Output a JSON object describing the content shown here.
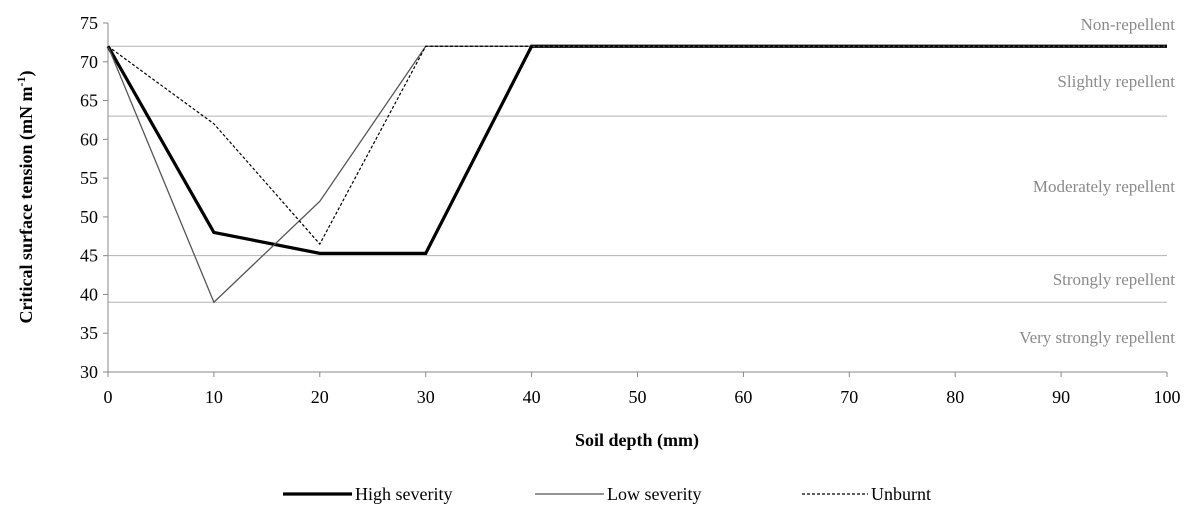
{
  "chart_data": {
    "type": "line",
    "xlabel": "Soil depth (mm)",
    "ylabel": "Critical surface tension (mN m",
    "ylabel_sup": "-1",
    "ylabel_close": ")",
    "xlim": [
      0,
      100
    ],
    "ylim": [
      30,
      75
    ],
    "x_ticks": [
      0,
      10,
      20,
      30,
      40,
      50,
      60,
      70,
      80,
      90,
      100
    ],
    "y_ticks": [
      30,
      35,
      40,
      45,
      50,
      55,
      60,
      65,
      70,
      75
    ],
    "grid": false,
    "legend_position": "bottom",
    "thresholds": [
      {
        "value": 72,
        "label": "Non-repellent"
      },
      {
        "value": 63,
        "label": "Slightly repellent"
      },
      {
        "value": 45,
        "label": "Moderately repellent"
      },
      {
        "value": 39,
        "label": "Strongly repellent"
      },
      {
        "value": 30,
        "label": "Very strongly repellent"
      }
    ],
    "series": [
      {
        "name": "High severity",
        "style": "thick",
        "color": "#000000",
        "x": [
          0,
          10,
          20,
          30,
          40,
          100
        ],
        "values": [
          72,
          48,
          45.3,
          45.3,
          72,
          72
        ]
      },
      {
        "name": "Low severity",
        "style": "thin",
        "color": "#555555",
        "x": [
          0,
          10,
          20,
          30,
          40,
          100
        ],
        "values": [
          72,
          39,
          52,
          72,
          72,
          72
        ]
      },
      {
        "name": "Unburnt",
        "style": "dashed",
        "color": "#000000",
        "x": [
          0,
          10,
          20,
          30,
          40,
          100
        ],
        "values": [
          72,
          62,
          46.5,
          72,
          72,
          72
        ]
      }
    ]
  }
}
